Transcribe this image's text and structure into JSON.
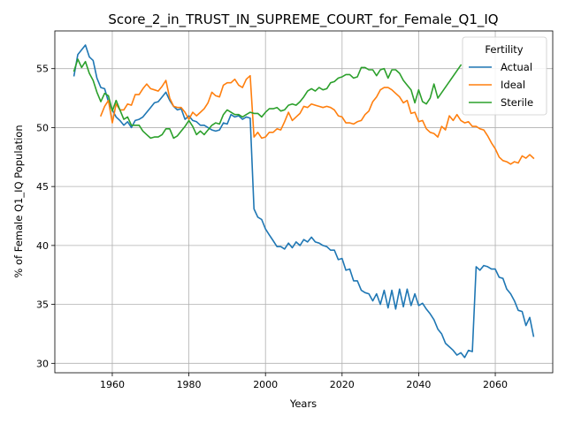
{
  "chart_data": {
    "type": "line",
    "title": "Score_2_in_TRUST_IN_SUPREME_COURT_for_Female_Q1_IQ",
    "xlabel": "Years",
    "ylabel": "% of Female Q1_IQ Population",
    "xlim": [
      1945,
      2075
    ],
    "ylim": [
      29.2,
      58.2
    ],
    "xticks": [
      1960,
      1980,
      2000,
      2020,
      2040,
      2060
    ],
    "yticks": [
      30,
      35,
      40,
      45,
      50,
      55
    ],
    "grid": true,
    "legend": {
      "title": "Fertility",
      "placement": "top-right"
    },
    "series": [
      {
        "name": "Actual",
        "color": "#1f77b4",
        "x": [
          1950,
          1951,
          1952,
          1953,
          1954,
          1955,
          1956,
          1957,
          1958,
          1959,
          1960,
          1961,
          1962,
          1963,
          1964,
          1965,
          1966,
          1967,
          1968,
          1969,
          1970,
          1971,
          1972,
          1973,
          1974,
          1975,
          1976,
          1977,
          1978,
          1979,
          1980,
          1981,
          1982,
          1983,
          1984,
          1985,
          1986,
          1987,
          1988,
          1989,
          1990,
          1991,
          1992,
          1993,
          1994,
          1995,
          1996,
          1997,
          1998,
          1999,
          2000,
          2001,
          2002,
          2003,
          2004,
          2005,
          2006,
          2007,
          2008,
          2009,
          2010,
          2011,
          2012,
          2013,
          2014,
          2015,
          2016,
          2017,
          2018,
          2019,
          2020,
          2021,
          2022,
          2023,
          2024,
          2025,
          2026,
          2027,
          2028,
          2029,
          2030,
          2031,
          2032,
          2033,
          2034,
          2035,
          2036,
          2037,
          2038,
          2039,
          2040,
          2041,
          2042,
          2043,
          2044,
          2045,
          2046,
          2047,
          2048,
          2049,
          2050,
          2051,
          2052,
          2053,
          2054,
          2055,
          2056,
          2057,
          2058,
          2059,
          2060,
          2061,
          2062,
          2063,
          2064,
          2065,
          2066,
          2067,
          2068,
          2069,
          2070
        ],
        "y": [
          54.4,
          56.2,
          56.6,
          57.0,
          56.0,
          55.7,
          54.2,
          53.4,
          53.3,
          52.2,
          51.5,
          50.9,
          50.6,
          50.2,
          50.5,
          50.0,
          50.6,
          50.7,
          50.9,
          51.3,
          51.7,
          52.1,
          52.2,
          52.6,
          53.0,
          52.3,
          51.8,
          51.5,
          51.6,
          50.7,
          51.0,
          50.6,
          50.5,
          50.2,
          50.2,
          50.0,
          49.8,
          49.7,
          49.8,
          50.4,
          50.3,
          51.1,
          50.9,
          51.0,
          50.7,
          50.9,
          50.8,
          43.1,
          42.4,
          42.2,
          41.4,
          40.9,
          40.4,
          39.9,
          39.9,
          39.7,
          40.2,
          39.8,
          40.3,
          40.0,
          40.5,
          40.3,
          40.7,
          40.3,
          40.2,
          40.0,
          39.9,
          39.6,
          39.6,
          38.8,
          38.9,
          37.9,
          38.0,
          37.0,
          37.0,
          36.2,
          36.0,
          35.9,
          35.3,
          35.9,
          35.0,
          36.2,
          34.7,
          36.2,
          34.6,
          36.3,
          34.8,
          36.3,
          34.9,
          35.9,
          34.9,
          35.1,
          34.6,
          34.2,
          33.7,
          32.9,
          32.5,
          31.7,
          31.4,
          31.1,
          30.7,
          30.9,
          30.5,
          31.1,
          31.0,
          38.2,
          37.9,
          38.3,
          38.2,
          38.0,
          38.0,
          37.3,
          37.2,
          36.3,
          35.9,
          35.3,
          34.5,
          34.4,
          33.2,
          33.9,
          32.3
        ]
      },
      {
        "name": "Ideal",
        "color": "#ff7f0e",
        "x": [
          1957,
          1958,
          1959,
          1960,
          1961,
          1962,
          1963,
          1964,
          1965,
          1966,
          1967,
          1968,
          1969,
          1970,
          1971,
          1972,
          1973,
          1974,
          1975,
          1976,
          1977,
          1978,
          1979,
          1980,
          1981,
          1982,
          1983,
          1984,
          1985,
          1986,
          1987,
          1988,
          1989,
          1990,
          1991,
          1992,
          1993,
          1994,
          1995,
          1996,
          1997,
          1998,
          1999,
          2000,
          2001,
          2002,
          2003,
          2004,
          2005,
          2006,
          2007,
          2008,
          2009,
          2010,
          2011,
          2012,
          2013,
          2014,
          2015,
          2016,
          2017,
          2018,
          2019,
          2020,
          2021,
          2022,
          2023,
          2024,
          2025,
          2026,
          2027,
          2028,
          2029,
          2030,
          2031,
          2032,
          2033,
          2034,
          2035,
          2036,
          2037,
          2038,
          2039,
          2040,
          2041,
          2042,
          2043,
          2044,
          2045,
          2046,
          2047,
          2048,
          2049,
          2050,
          2051,
          2052,
          2053,
          2054,
          2055,
          2056,
          2057,
          2058,
          2059,
          2060,
          2061,
          2062,
          2063,
          2064,
          2065,
          2066,
          2067,
          2068,
          2069,
          2070
        ],
        "y": [
          51.0,
          51.8,
          52.3,
          50.4,
          52.0,
          51.5,
          51.5,
          52.0,
          51.9,
          52.8,
          52.8,
          53.3,
          53.7,
          53.3,
          53.2,
          53.1,
          53.5,
          54.0,
          52.5,
          51.8,
          51.7,
          51.7,
          51.3,
          50.7,
          51.3,
          51.0,
          51.3,
          51.6,
          52.1,
          53.0,
          52.7,
          52.6,
          53.6,
          53.8,
          53.8,
          54.1,
          53.6,
          53.4,
          54.1,
          54.4,
          49.2,
          49.6,
          49.1,
          49.2,
          49.6,
          49.6,
          49.9,
          49.8,
          50.5,
          51.3,
          50.6,
          50.9,
          51.2,
          51.8,
          51.7,
          52.0,
          51.9,
          51.8,
          51.7,
          51.8,
          51.7,
          51.5,
          51.0,
          50.9,
          50.4,
          50.4,
          50.3,
          50.5,
          50.6,
          51.1,
          51.4,
          52.2,
          52.6,
          53.2,
          53.4,
          53.4,
          53.2,
          52.9,
          52.6,
          52.1,
          52.3,
          51.2,
          51.3,
          50.5,
          50.6,
          49.9,
          49.6,
          49.5,
          49.2,
          50.1,
          49.8,
          51.0,
          50.6,
          51.1,
          50.6,
          50.4,
          50.5,
          50.1,
          50.1,
          49.9,
          49.8,
          49.3,
          48.7,
          48.2,
          47.5,
          47.2,
          47.1,
          46.9,
          47.1,
          47.0,
          47.6,
          47.4,
          47.7,
          47.4
        ]
      },
      {
        "name": "Sterile",
        "color": "#2ca02c",
        "x": [
          1950,
          1951,
          1952,
          1953,
          1954,
          1955,
          1956,
          1957,
          1958,
          1959,
          1960,
          1961,
          1962,
          1963,
          1964,
          1965,
          1966,
          1967,
          1968,
          1969,
          1970,
          1971,
          1972,
          1973,
          1974,
          1975,
          1976,
          1977,
          1978,
          1979,
          1980,
          1981,
          1982,
          1983,
          1984,
          1985,
          1986,
          1987,
          1988,
          1989,
          1990,
          1991,
          1992,
          1993,
          1994,
          1995,
          1996,
          1997,
          1998,
          1999,
          2000,
          2001,
          2002,
          2003,
          2004,
          2005,
          2006,
          2007,
          2008,
          2009,
          2010,
          2011,
          2012,
          2013,
          2014,
          2015,
          2016,
          2017,
          2018,
          2019,
          2020,
          2021,
          2022,
          2023,
          2024,
          2025,
          2026,
          2027,
          2028,
          2029,
          2030,
          2031,
          2032,
          2033,
          2034,
          2035,
          2036,
          2037,
          2038,
          2039,
          2040,
          2041,
          2042,
          2043,
          2044,
          2045,
          2051
        ],
        "y": [
          54.8,
          55.8,
          55.1,
          55.6,
          54.6,
          54.0,
          53.0,
          52.2,
          52.9,
          52.7,
          51.4,
          52.3,
          51.5,
          50.7,
          50.9,
          50.2,
          50.2,
          50.2,
          49.7,
          49.4,
          49.1,
          49.2,
          49.2,
          49.4,
          49.9,
          49.9,
          49.1,
          49.3,
          49.7,
          50.1,
          50.6,
          50.1,
          49.4,
          49.7,
          49.4,
          49.8,
          50.2,
          50.4,
          50.3,
          51.1,
          51.5,
          51.3,
          51.1,
          51.1,
          50.9,
          51.1,
          51.3,
          51.2,
          51.2,
          50.9,
          51.3,
          51.6,
          51.6,
          51.7,
          51.4,
          51.5,
          51.9,
          52.0,
          51.9,
          52.2,
          52.6,
          53.1,
          53.3,
          53.1,
          53.4,
          53.2,
          53.3,
          53.8,
          53.9,
          54.2,
          54.3,
          54.5,
          54.5,
          54.2,
          54.3,
          55.1,
          55.1,
          54.9,
          54.9,
          54.4,
          54.9,
          55.0,
          54.2,
          54.9,
          54.9,
          54.6,
          54.0,
          53.6,
          53.2,
          52.1,
          53.2,
          52.2,
          52.0,
          52.5,
          53.7,
          52.5,
          55.3
        ]
      }
    ]
  }
}
